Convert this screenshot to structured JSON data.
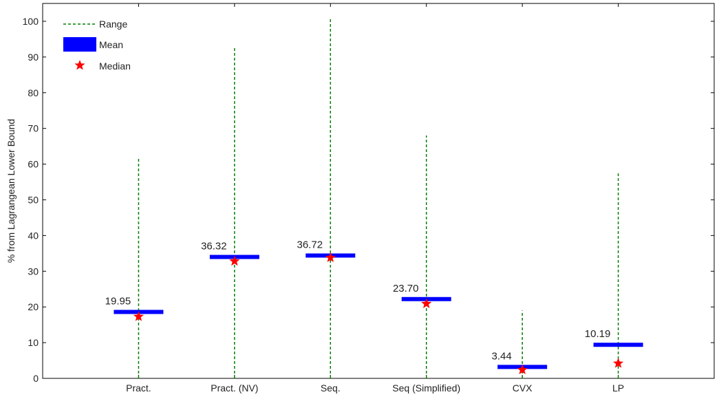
{
  "chart_data": {
    "type": "bar",
    "title": "",
    "xlabel": "",
    "ylabel": "% from Lagrangean Lower Bound",
    "ylim": [
      0,
      105
    ],
    "yticks": [
      0,
      10,
      20,
      30,
      40,
      50,
      60,
      70,
      80,
      90,
      100
    ],
    "categories": [
      "Pract.",
      "Pract. (NV)",
      "Seq.",
      "Seq (Simplified)",
      "CVX",
      "LP"
    ],
    "series": [
      {
        "name": "Range",
        "kind": "range",
        "color": "#007f00",
        "min": [
          0,
          0,
          0,
          0,
          0,
          0
        ],
        "max": [
          62,
          93,
          101,
          68,
          19,
          58
        ]
      },
      {
        "name": "Mean",
        "kind": "mean",
        "color": "#0000ff",
        "values": [
          18.6,
          34.0,
          34.4,
          22.2,
          3.2,
          9.4
        ]
      },
      {
        "name": "Median",
        "kind": "median",
        "color": "#ff0000",
        "values": [
          17.3,
          32.8,
          33.8,
          20.9,
          2.4,
          4.2
        ]
      }
    ],
    "value_labels": [
      "19.95",
      "36.32",
      "36.72",
      "23.70",
      "3.44",
      "10.19"
    ],
    "legend": {
      "position": "top-left",
      "entries": [
        "Range",
        "Mean",
        "Median"
      ]
    },
    "grid": false
  }
}
